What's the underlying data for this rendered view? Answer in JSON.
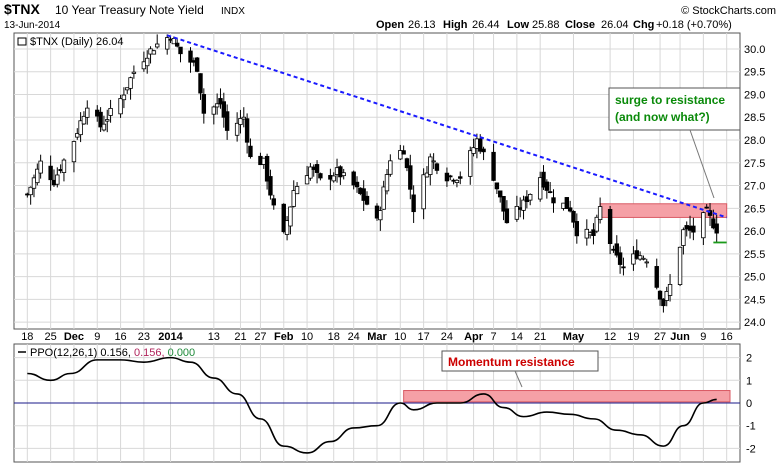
{
  "header": {
    "symbol": "$TNX",
    "name": "10 Year Treasury Note Yield",
    "exchange": "INDX",
    "date": "13-Jun-2014",
    "brand": "© StockCharts.com",
    "ohlc": {
      "open_label": "Open",
      "open": "26.13",
      "high_label": "High",
      "high": "26.44",
      "low_label": "Low",
      "low": "25.88",
      "close_label": "Close",
      "close": "26.04",
      "chg_label": "Chg",
      "chg": "+0.18 (+0.70%)"
    }
  },
  "chart_data": [
    {
      "type": "candlestick",
      "legend": "$TNX (Daily) 26.04",
      "y_ticks": [
        "24.0",
        "24.5",
        "25.0",
        "25.5",
        "26.0",
        "26.5",
        "27.0",
        "27.5",
        "28.0",
        "28.5",
        "29.0",
        "29.5",
        "30.0"
      ],
      "ylim": [
        23.85,
        30.35
      ],
      "x_ticks": [
        "18",
        "25",
        "Dec",
        "9",
        "16",
        "23",
        "2014",
        "13",
        "21",
        "27",
        "Feb",
        "10",
        "18",
        "24",
        "Mar",
        "10",
        "17",
        "24",
        "Apr",
        "7",
        "14",
        "21",
        "May",
        "12",
        "19",
        "27",
        "Jun",
        "9",
        "16"
      ],
      "close_path": [
        [
          "2013-11-18",
          26.8
        ],
        [
          "2013-11-22",
          27.5
        ],
        [
          "2013-11-26",
          27.1
        ],
        [
          "2013-12-02",
          28.0
        ],
        [
          "2013-12-06",
          28.8
        ],
        [
          "2013-12-10",
          28.3
        ],
        [
          "2013-12-16",
          28.9
        ],
        [
          "2013-12-20",
          29.5
        ],
        [
          "2013-12-24",
          29.9
        ],
        [
          "2013-12-27",
          30.1
        ],
        [
          "2013-12-31",
          30.3
        ],
        [
          "2014-01-03",
          29.9
        ],
        [
          "2014-01-08",
          29.6
        ],
        [
          "2014-01-10",
          28.6
        ],
        [
          "2014-01-15",
          28.8
        ],
        [
          "2014-01-17",
          28.2
        ],
        [
          "2014-01-22",
          28.5
        ],
        [
          "2014-01-24",
          27.6
        ],
        [
          "2014-01-28",
          27.5
        ],
        [
          "2014-01-31",
          26.5
        ],
        [
          "2014-02-03",
          25.9
        ],
        [
          "2014-02-06",
          26.9
        ],
        [
          "2014-02-11",
          27.4
        ],
        [
          "2014-02-14",
          27.1
        ],
        [
          "2014-02-19",
          27.3
        ],
        [
          "2014-02-24",
          27.0
        ],
        [
          "2014-02-28",
          26.6
        ],
        [
          "2014-03-03",
          26.2
        ],
        [
          "2014-03-07",
          27.6
        ],
        [
          "2014-03-11",
          27.8
        ],
        [
          "2014-03-14",
          26.5
        ],
        [
          "2014-03-19",
          27.6
        ],
        [
          "2014-03-24",
          27.2
        ],
        [
          "2014-03-28",
          27.2
        ],
        [
          "2014-04-02",
          28.0
        ],
        [
          "2014-04-07",
          27.2
        ],
        [
          "2014-04-11",
          26.2
        ],
        [
          "2014-04-16",
          26.6
        ],
        [
          "2014-04-21",
          27.2
        ],
        [
          "2014-04-25",
          26.7
        ],
        [
          "2014-04-30",
          26.5
        ],
        [
          "2014-05-02",
          26.0
        ],
        [
          "2014-05-07",
          25.9
        ],
        [
          "2014-05-09",
          26.5
        ],
        [
          "2014-05-13",
          25.5
        ],
        [
          "2014-05-16",
          25.2
        ],
        [
          "2014-05-20",
          25.5
        ],
        [
          "2014-05-23",
          25.4
        ],
        [
          "2014-05-28",
          24.4
        ],
        [
          "2014-05-30",
          24.8
        ],
        [
          "2014-06-03",
          26.0
        ],
        [
          "2014-06-06",
          26.0
        ],
        [
          "2014-06-10",
          26.4
        ],
        [
          "2014-06-13",
          26.04
        ]
      ],
      "trendline": [
        [
          "2013-12-30",
          30.3
        ],
        [
          "2014-06-16",
          26.3
        ]
      ],
      "resistance_zone": {
        "from": "2014-05-09",
        "to": "2014-06-16",
        "low": 26.3,
        "high": 26.6
      },
      "support_line": {
        "from": "2014-06-12",
        "to": "2014-06-16",
        "value": 25.75
      },
      "annotation": {
        "text_line1": "surge to resistance",
        "text_line2": "(and now what?)",
        "color": "#0a8a0a"
      }
    },
    {
      "type": "line",
      "indicator": "PPO",
      "legend_prefix": "PPO(12,26,1)",
      "legend_values": [
        "0.156",
        "0.156",
        "0.000"
      ],
      "legend_colors": [
        "#333333",
        "#b0245c",
        "#1f8a3a"
      ],
      "y_ticks": [
        "-2",
        "-1",
        "0",
        "1",
        "2"
      ],
      "ylim": [
        -2.6,
        2.6
      ],
      "series": [
        [
          "2013-11-18",
          1.3
        ],
        [
          "2013-11-25",
          1.0
        ],
        [
          "2013-12-01",
          1.3
        ],
        [
          "2013-12-09",
          1.9
        ],
        [
          "2013-12-16",
          1.9
        ],
        [
          "2013-12-23",
          1.8
        ],
        [
          "2013-12-31",
          2.0
        ],
        [
          "2014-01-06",
          1.8
        ],
        [
          "2014-01-13",
          1.1
        ],
        [
          "2014-01-20",
          0.4
        ],
        [
          "2014-01-27",
          -0.7
        ],
        [
          "2014-02-03",
          -1.9
        ],
        [
          "2014-02-10",
          -2.2
        ],
        [
          "2014-02-17",
          -1.7
        ],
        [
          "2014-02-24",
          -1.1
        ],
        [
          "2014-03-03",
          -1.0
        ],
        [
          "2014-03-10",
          0.0
        ],
        [
          "2014-03-14",
          -0.3
        ],
        [
          "2014-03-21",
          0.0
        ],
        [
          "2014-03-28",
          0.0
        ],
        [
          "2014-04-04",
          0.4
        ],
        [
          "2014-04-10",
          -0.2
        ],
        [
          "2014-04-16",
          -0.6
        ],
        [
          "2014-04-23",
          -0.4
        ],
        [
          "2014-04-30",
          -0.5
        ],
        [
          "2014-05-07",
          -0.7
        ],
        [
          "2014-05-14",
          -1.2
        ],
        [
          "2014-05-21",
          -1.4
        ],
        [
          "2014-05-28",
          -1.9
        ],
        [
          "2014-06-03",
          -1.0
        ],
        [
          "2014-06-09",
          0.0
        ],
        [
          "2014-06-13",
          0.156
        ]
      ],
      "resistance_zone": {
        "from": "2014-03-11",
        "to": "2014-06-17",
        "low": 0.05,
        "high": 0.55
      },
      "annotation": {
        "text": "Momentum resistance",
        "color": "#cc0000"
      }
    }
  ],
  "colors": {
    "trend": "#1a1aff",
    "zone": "#f5a0a6",
    "zone_edge": "#d95a64",
    "green": "#1a9a1a",
    "grid": "#d8d8d8"
  }
}
